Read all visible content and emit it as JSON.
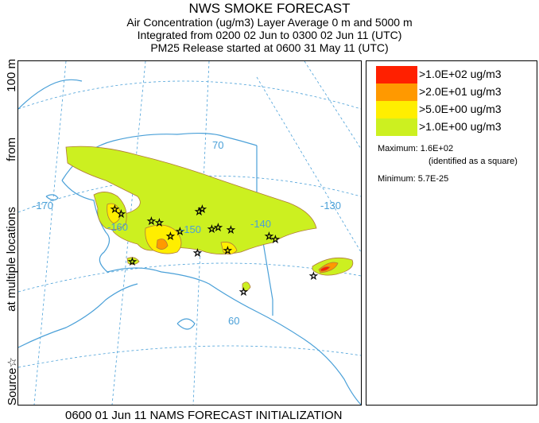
{
  "header": {
    "title": "NWS SMOKE FORECAST",
    "line1": "Air Concentration (ug/m3) Layer Average     0 m and  5000 m",
    "line2": "Integrated from 0200 02 Jun to 0300 02 Jun 11 (UTC)",
    "line3": "PM25 Release started at 0600 31 May 11 (UTC)"
  },
  "side_label": {
    "source": "Source☆",
    "at_multiple": "at multiple locations",
    "from": "from",
    "height": "100 m"
  },
  "map": {
    "lon_labels": [
      "-170",
      "-160",
      "-150",
      "-140",
      "-130"
    ],
    "lat_labels": [
      "70",
      "60"
    ]
  },
  "legend": {
    "items": [
      {
        "label": ">1.0E+02 ug/m3",
        "color": "#ff2000"
      },
      {
        "label": ">2.0E+01 ug/m3",
        "color": "#ff9900"
      },
      {
        "label": ">5.0E+00 ug/m3",
        "color": "#ffee00"
      },
      {
        "label": ">1.0E+00 ug/m3",
        "color": "#ccf020"
      }
    ],
    "maximum": "Maximum: 1.6E+02",
    "maximum_note": "(identified as a square)",
    "minimum": "Minimum: 5.7E-25"
  },
  "footer": "0600 01 Jun 11 NAMS FORECAST INITIALIZATION",
  "colors": {
    "coast": "#4aa0d8",
    "graticule": "#4aa0d8",
    "contour": "#b07a3a"
  }
}
